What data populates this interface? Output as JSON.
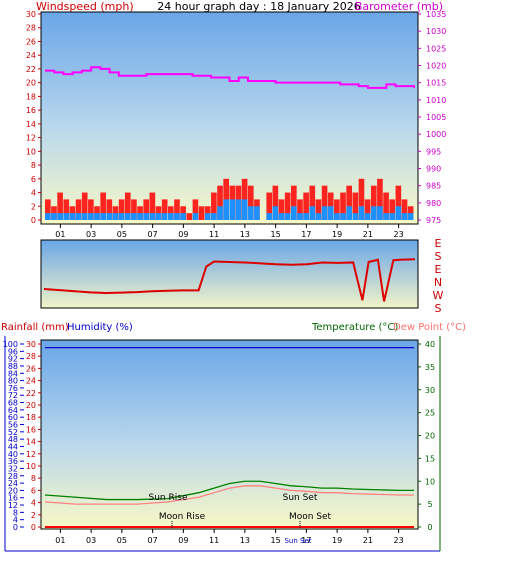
{
  "header": {
    "title": "24 hour graph day : 18 January 2026",
    "left_label": "Windspeed (mph)",
    "right_label": "Barometer (mb)"
  },
  "wind_dir_labels": [
    "E",
    "S",
    "E",
    "N",
    "W",
    "S"
  ],
  "lower_header": {
    "rain_label": "Rainfall (mm)",
    "humidity_label": "Humidity (%)",
    "temp_label": "Temperature (°C)",
    "dew_label": "Dew Point (°C)"
  },
  "annotations": {
    "sun_rise": "Sun Rise",
    "sun_set": "Sun Set",
    "moon_rise": "Moon Rise",
    "moon_set": "Moon Set",
    "sun_short": "Sun Set"
  },
  "colors": {
    "windspeed": "#ff0000",
    "gust": "#dd0000",
    "avg_wind": "#1e90ff",
    "barometer": "#ff00ff",
    "temperature": "#008000",
    "dew_point": "#ff8080",
    "humidity": "#0000cc",
    "rainfall": "#ff0000",
    "direction": "#dd0000"
  },
  "chart_data": [
    {
      "type": "line",
      "name": "wind-barometer",
      "x_ticks": [
        "01",
        "03",
        "05",
        "07",
        "09",
        "11",
        "13",
        "15",
        "17",
        "19",
        "21",
        "23"
      ],
      "y_left": {
        "label": "Windspeed (mph)",
        "ticks": [
          0,
          2,
          4,
          6,
          8,
          10,
          12,
          14,
          16,
          18,
          20,
          22,
          24,
          26,
          28,
          30
        ],
        "range": [
          0,
          30
        ]
      },
      "y_right": {
        "label": "Barometer (mb)",
        "ticks": [
          975,
          980,
          985,
          990,
          995,
          1000,
          1005,
          1010,
          1015,
          1020,
          1025,
          1030,
          1035
        ],
        "range": [
          975,
          1035
        ]
      },
      "series": [
        {
          "name": "Barometer (mb)",
          "axis": "right",
          "x": [
            0,
            0.6,
            1.2,
            1.8,
            2.4,
            3.0,
            3.6,
            4.2,
            4.8,
            5.4,
            6.0,
            6.6,
            7.2,
            7.8,
            8.4,
            9.0,
            9.6,
            10.2,
            10.8,
            11.4,
            12.0,
            12.6,
            13.2,
            13.8,
            14.4,
            15.0,
            15.6,
            16.2,
            16.8,
            17.4,
            18.0,
            18.6,
            19.2,
            19.8,
            20.4,
            21.0,
            21.6,
            22.2,
            22.8,
            23.4,
            24.0
          ],
          "y": [
            1018.5,
            1018,
            1017.5,
            1018,
            1018.5,
            1019.5,
            1019,
            1018,
            1017,
            1017,
            1017,
            1017.5,
            1017.5,
            1017.5,
            1017.5,
            1017.5,
            1017,
            1017,
            1016.5,
            1016.5,
            1015.5,
            1016.5,
            1015.5,
            1015.5,
            1015.5,
            1015,
            1015,
            1015,
            1015,
            1015,
            1015,
            1015,
            1014.5,
            1014.5,
            1014,
            1013.5,
            1013.5,
            1014.5,
            1014,
            1014,
            1013.5
          ]
        }
      ],
      "bar_series": {
        "name": "Windspeed (mph)",
        "x": [
          0.0,
          0.4,
          0.8,
          1.2,
          1.6,
          2.0,
          2.4,
          2.8,
          3.2,
          3.6,
          4.0,
          4.4,
          4.8,
          5.2,
          5.6,
          6.0,
          6.4,
          6.8,
          7.2,
          7.6,
          8.0,
          8.4,
          8.8,
          9.2,
          9.6,
          10.0,
          10.4,
          10.8,
          11.2,
          11.6,
          12.0,
          12.4,
          12.8,
          13.2,
          13.6,
          14.0,
          14.4,
          14.8,
          15.2,
          15.6,
          16.0,
          16.4,
          16.8,
          17.2,
          17.6,
          18.0,
          18.4,
          18.8,
          19.2,
          19.6,
          20.0,
          20.4,
          20.8,
          21.2,
          21.6,
          22.0,
          22.4,
          22.8,
          23.2,
          23.6
        ],
        "gust": [
          3,
          2,
          4,
          3,
          2,
          3,
          4,
          3,
          2,
          4,
          3,
          2,
          3,
          4,
          3,
          2,
          3,
          4,
          2,
          3,
          2,
          3,
          2,
          1,
          3,
          2,
          2,
          4,
          5,
          6,
          5,
          5,
          6,
          5,
          3,
          0,
          4,
          5,
          3,
          4,
          5,
          3,
          4,
          5,
          3,
          5,
          4,
          3,
          4,
          5,
          4,
          6,
          3,
          5,
          6,
          4,
          3,
          5,
          3,
          2
        ],
        "avg": [
          1,
          1,
          1,
          1,
          1,
          1,
          1,
          1,
          1,
          1,
          1,
          1,
          1,
          1,
          1,
          1,
          1,
          1,
          1,
          1,
          1,
          1,
          1,
          0,
          1,
          0,
          1,
          1,
          2,
          3,
          3,
          3,
          3,
          2,
          2,
          0,
          1,
          2,
          1,
          1,
          2,
          1,
          1,
          2,
          1,
          2,
          2,
          1,
          1,
          2,
          1,
          2,
          1,
          2,
          2,
          1,
          1,
          2,
          1,
          1
        ]
      }
    },
    {
      "type": "line",
      "name": "wind-direction",
      "y_labels": [
        "E",
        "S",
        "E",
        "N",
        "W",
        "S"
      ],
      "x": [
        0,
        1,
        2,
        3,
        4,
        5,
        6,
        7,
        8,
        9,
        10,
        10.5,
        11,
        12,
        13,
        14,
        15,
        16,
        17,
        18,
        19,
        20,
        20.6,
        21,
        21.6,
        22,
        22.6,
        23,
        24
      ],
      "y_deg": [
        200,
        205,
        210,
        215,
        218,
        216,
        214,
        210,
        208,
        206,
        206,
        100,
        78,
        80,
        82,
        86,
        90,
        92,
        90,
        82,
        84,
        82,
        250,
        80,
        70,
        255,
        72,
        70,
        68
      ]
    },
    {
      "type": "line",
      "name": "temp-humidity-rain",
      "x_ticks": [
        "01",
        "03",
        "05",
        "07",
        "09",
        "11",
        "13",
        "15",
        "17",
        "19",
        "21",
        "23"
      ],
      "y_left": {
        "label": "Humidity (%)",
        "ticks": [
          0,
          4,
          8,
          12,
          16,
          20,
          24,
          28,
          32,
          36,
          40,
          44,
          48,
          52,
          56,
          60,
          64,
          68,
          72,
          76,
          80,
          84,
          88,
          92,
          96,
          100
        ],
        "range": [
          0,
          100
        ]
      },
      "y_rain": {
        "label": "Rainfall (mm)",
        "ticks": [
          0,
          2,
          4,
          6,
          8,
          10,
          12,
          14,
          16,
          18,
          20,
          22,
          24,
          26,
          28,
          30
        ],
        "range": [
          0,
          30
        ]
      },
      "y_right": {
        "label": "Temperature (°C)",
        "ticks": [
          0,
          5,
          10,
          15,
          20,
          25,
          30,
          35,
          40
        ],
        "range": [
          0,
          40
        ]
      },
      "series": [
        {
          "name": "Temperature (°C)",
          "axis": "right",
          "x": [
            0,
            2,
            4,
            6,
            8,
            10,
            11,
            12,
            13,
            14,
            15,
            16,
            17,
            18,
            19,
            20,
            21,
            22,
            23,
            24
          ],
          "y": [
            7,
            6.5,
            6,
            6,
            6.2,
            7.5,
            8.5,
            9.5,
            10,
            10,
            9.5,
            9,
            8.8,
            8.5,
            8.5,
            8.3,
            8.2,
            8.1,
            8,
            8
          ]
        },
        {
          "name": "Dew Point (°C)",
          "axis": "right",
          "x": [
            0,
            2,
            4,
            6,
            8,
            10,
            11,
            12,
            13,
            14,
            15,
            16,
            17,
            18,
            19,
            20,
            21,
            22,
            23,
            24
          ],
          "y": [
            5.5,
            5,
            5,
            5,
            5.5,
            6.5,
            7.5,
            8.5,
            9,
            9,
            8.5,
            8,
            7.8,
            7.5,
            7.5,
            7.3,
            7.2,
            7.1,
            7,
            7
          ]
        },
        {
          "name": "Humidity (%)",
          "axis": "left",
          "x": [
            0,
            24
          ],
          "y": [
            98,
            98
          ]
        },
        {
          "name": "Rainfall (mm)",
          "axis": "rain",
          "x": [
            0,
            24
          ],
          "y": [
            0,
            0
          ]
        }
      ]
    }
  ]
}
